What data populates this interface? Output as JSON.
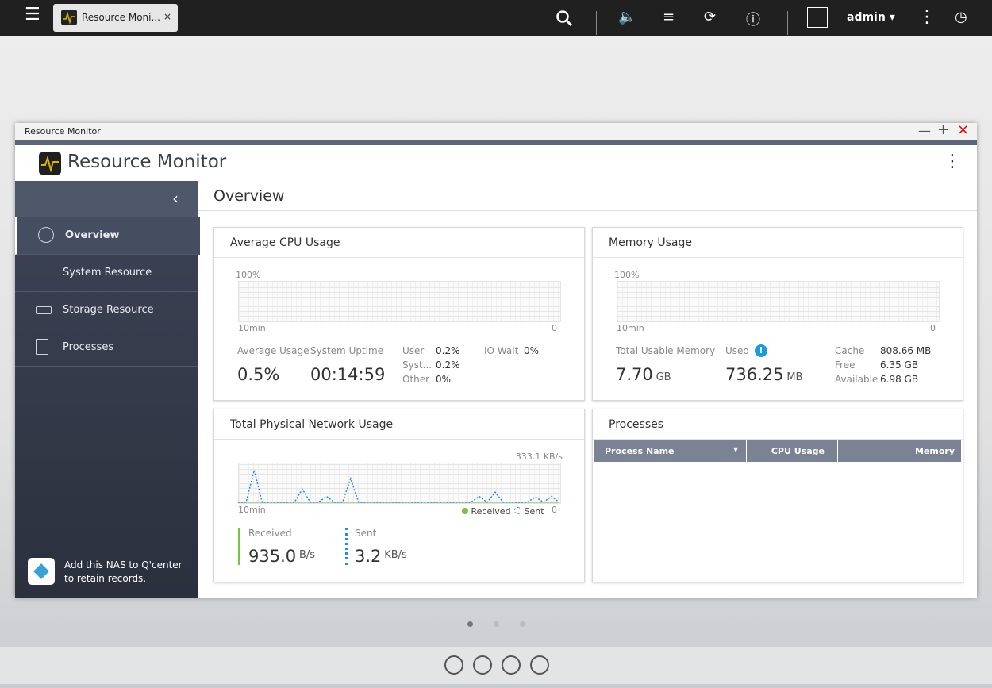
{
  "taskbar": {
    "tab_title": "Resource Moni...",
    "user": "admin"
  },
  "window": {
    "title": "Resource Monitor"
  },
  "app": {
    "title": "Resource Monitor"
  },
  "sidebar": {
    "items": [
      "Overview",
      "System Resource",
      "Storage Resource",
      "Processes"
    ],
    "promo": "Add this NAS to Q'center to retain records."
  },
  "page_title": "Overview",
  "cpu": {
    "title": "Average CPU Usage",
    "y_max": "100%",
    "x_start": "10min",
    "x_end": "0",
    "average_label": "Average Usage",
    "average": "0.5%",
    "uptime_label": "System Uptime",
    "uptime": "00:14:59",
    "breakdown": [
      {
        "label": "User",
        "value": "0.2%"
      },
      {
        "label": "Syst...",
        "value": "0.2%"
      },
      {
        "label": "Other",
        "value": "0%"
      },
      {
        "label": "IO Wait",
        "value": "0%"
      }
    ]
  },
  "memory": {
    "title": "Memory Usage",
    "y_max": "100%",
    "x_start": "10min",
    "x_end": "0",
    "total_label": "Total Usable Memory",
    "total": "7.70",
    "total_unit": "GB",
    "used_label": "Used",
    "used": "736.25",
    "used_unit": "MB",
    "details": [
      {
        "label": "Cache",
        "value": "808.66 MB"
      },
      {
        "label": "Free",
        "value": "6.35 GB"
      },
      {
        "label": "Available",
        "value": "6.98 GB"
      }
    ]
  },
  "network": {
    "title": "Total Physical Network Usage",
    "y_max": "333.1 KB/s",
    "x_start": "10min",
    "x_end": "0",
    "legend": [
      "Received",
      "Sent"
    ],
    "received_label": "Received",
    "received": "935.0",
    "received_unit": "B/s",
    "sent_label": "Sent",
    "sent": "3.2",
    "sent_unit": "KB/s",
    "chart": {
      "ylim": [
        0,
        333.1
      ],
      "sent": [
        0,
        0,
        270,
        0,
        0,
        0,
        0,
        0,
        110,
        0,
        0,
        50,
        0,
        0,
        200,
        0,
        0,
        0,
        0,
        0,
        0,
        0,
        0,
        0,
        0,
        0,
        0,
        0,
        0,
        0,
        50,
        0,
        85,
        0,
        0,
        0,
        0,
        45,
        0,
        50,
        0
      ],
      "received": [
        1,
        1,
        1,
        1,
        1,
        1,
        1,
        1,
        1,
        1,
        1,
        1,
        1,
        1,
        1,
        1,
        1,
        1,
        1,
        1,
        1,
        1,
        1,
        1,
        1,
        1,
        1,
        1,
        1,
        1,
        1,
        1,
        1,
        1,
        1,
        1,
        1,
        1,
        1,
        1,
        1
      ]
    }
  },
  "processes": {
    "title": "Processes",
    "columns": [
      "Process Name",
      "CPU Usage",
      "Memory"
    ]
  }
}
